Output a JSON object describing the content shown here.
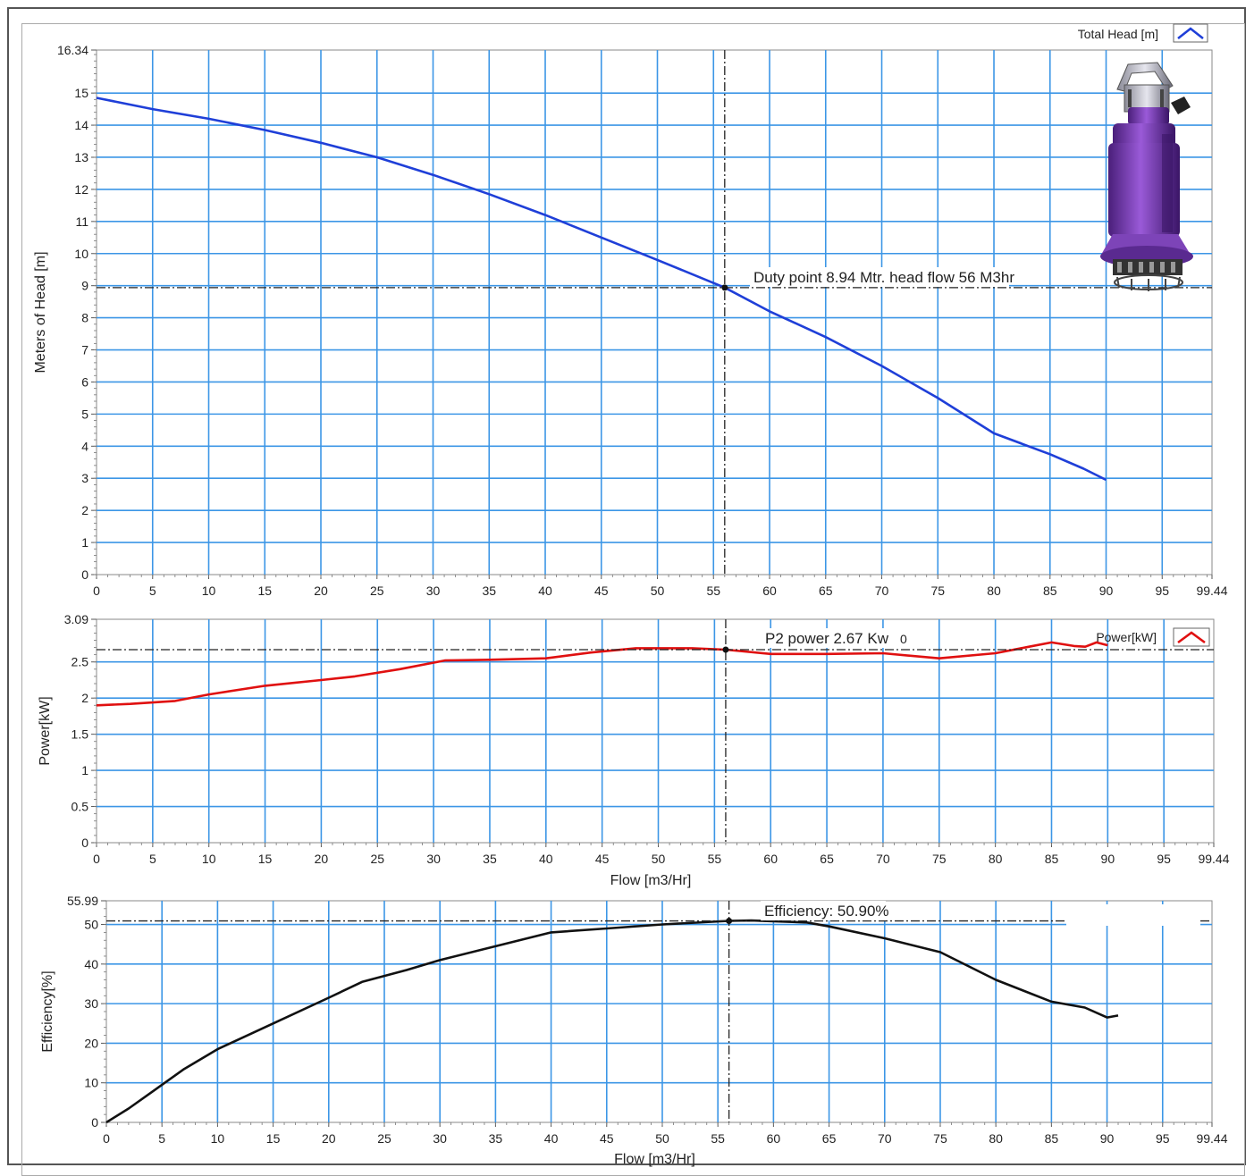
{
  "chart_data": [
    {
      "type": "line",
      "id": "head",
      "ylabel": "Meters of Head [m]",
      "xlabel": "",
      "xlim": [
        0,
        99.44
      ],
      "ylim": [
        0,
        16.34
      ],
      "x_ticks": [
        0,
        5,
        10,
        15,
        20,
        25,
        30,
        35,
        40,
        45,
        50,
        55,
        60,
        65,
        70,
        75,
        80,
        85,
        90,
        95,
        99.44
      ],
      "y_ticks": [
        0,
        1,
        2,
        3,
        4,
        5,
        6,
        7,
        8,
        9,
        10,
        11,
        12,
        13,
        14,
        15,
        16.34
      ],
      "legend": "Total Head [m]",
      "legend_position": "top-right",
      "color": "#1f3fd8",
      "series": [
        {
          "name": "Total Head [m]",
          "x": [
            0,
            5,
            10,
            15,
            20,
            25,
            30,
            35,
            40,
            45,
            50,
            56,
            60,
            65,
            70,
            75,
            80,
            85,
            88,
            90
          ],
          "y": [
            14.85,
            14.5,
            14.2,
            13.85,
            13.45,
            13.0,
            12.45,
            11.85,
            11.2,
            10.5,
            9.8,
            8.94,
            8.2,
            7.4,
            6.5,
            5.5,
            4.4,
            3.75,
            3.3,
            2.95
          ]
        }
      ],
      "duty_point": {
        "x": 56,
        "y": 8.94
      },
      "annotation": "Duty point 8.94 Mtr. head flow 56 M3hr",
      "grid": true
    },
    {
      "type": "line",
      "id": "power",
      "ylabel": "Power[kW]",
      "xlabel": "Flow [m3/Hr]",
      "xlim": [
        0,
        99.44
      ],
      "ylim": [
        0,
        3.09
      ],
      "x_ticks": [
        0,
        5,
        10,
        15,
        20,
        25,
        30,
        35,
        40,
        45,
        50,
        55,
        60,
        65,
        70,
        75,
        80,
        85,
        90,
        95,
        99.44
      ],
      "y_ticks": [
        0,
        0.5,
        1,
        1.5,
        2,
        2.5,
        3.09
      ],
      "legend": "Power[kW]",
      "legend_position": "top-right",
      "color": "#e01010",
      "series": [
        {
          "name": "Power[kW]",
          "x": [
            0,
            3,
            7,
            10,
            15,
            20,
            23,
            27,
            31,
            35,
            40,
            44,
            48,
            53,
            56,
            60,
            65,
            70,
            75,
            80,
            83,
            85,
            87,
            88,
            89,
            90
          ],
          "y": [
            1.9,
            1.92,
            1.96,
            2.05,
            2.17,
            2.25,
            2.3,
            2.4,
            2.52,
            2.53,
            2.55,
            2.63,
            2.69,
            2.69,
            2.67,
            2.61,
            2.61,
            2.62,
            2.55,
            2.62,
            2.71,
            2.77,
            2.72,
            2.71,
            2.77,
            2.73
          ]
        }
      ],
      "duty_point": {
        "x": 56,
        "y": 2.67
      },
      "annotation": "P2 power 2.67 Kw",
      "annotation_extra": "0",
      "grid": true
    },
    {
      "type": "line",
      "id": "efficiency",
      "ylabel": "Efficiency[%]",
      "xlabel": "Flow [m3/Hr]",
      "xlim": [
        0,
        99.44
      ],
      "ylim": [
        0,
        55.99
      ],
      "x_ticks": [
        0,
        5,
        10,
        15,
        20,
        25,
        30,
        35,
        40,
        45,
        50,
        55,
        60,
        65,
        70,
        75,
        80,
        85,
        90,
        95,
        99.44
      ],
      "y_ticks": [
        0,
        10,
        20,
        30,
        40,
        50,
        55.99
      ],
      "color": "#111111",
      "series": [
        {
          "name": "",
          "x": [
            0,
            2,
            4,
            7,
            10,
            15,
            20,
            23,
            27,
            30,
            35,
            40,
            45,
            50,
            56,
            58,
            63,
            65,
            70,
            75,
            80,
            85,
            88,
            90,
            91
          ],
          "y": [
            0,
            3.5,
            7.5,
            13.5,
            18.5,
            25,
            31.5,
            35.5,
            38.5,
            41,
            44.5,
            48,
            49,
            50,
            50.9,
            51,
            50.5,
            49.5,
            46.5,
            43,
            36,
            30.5,
            29,
            26.5,
            27
          ]
        }
      ],
      "duty_point": {
        "x": 56,
        "y": 50.9
      },
      "annotation": "Efficiency: 50.90%",
      "grid": true
    }
  ]
}
